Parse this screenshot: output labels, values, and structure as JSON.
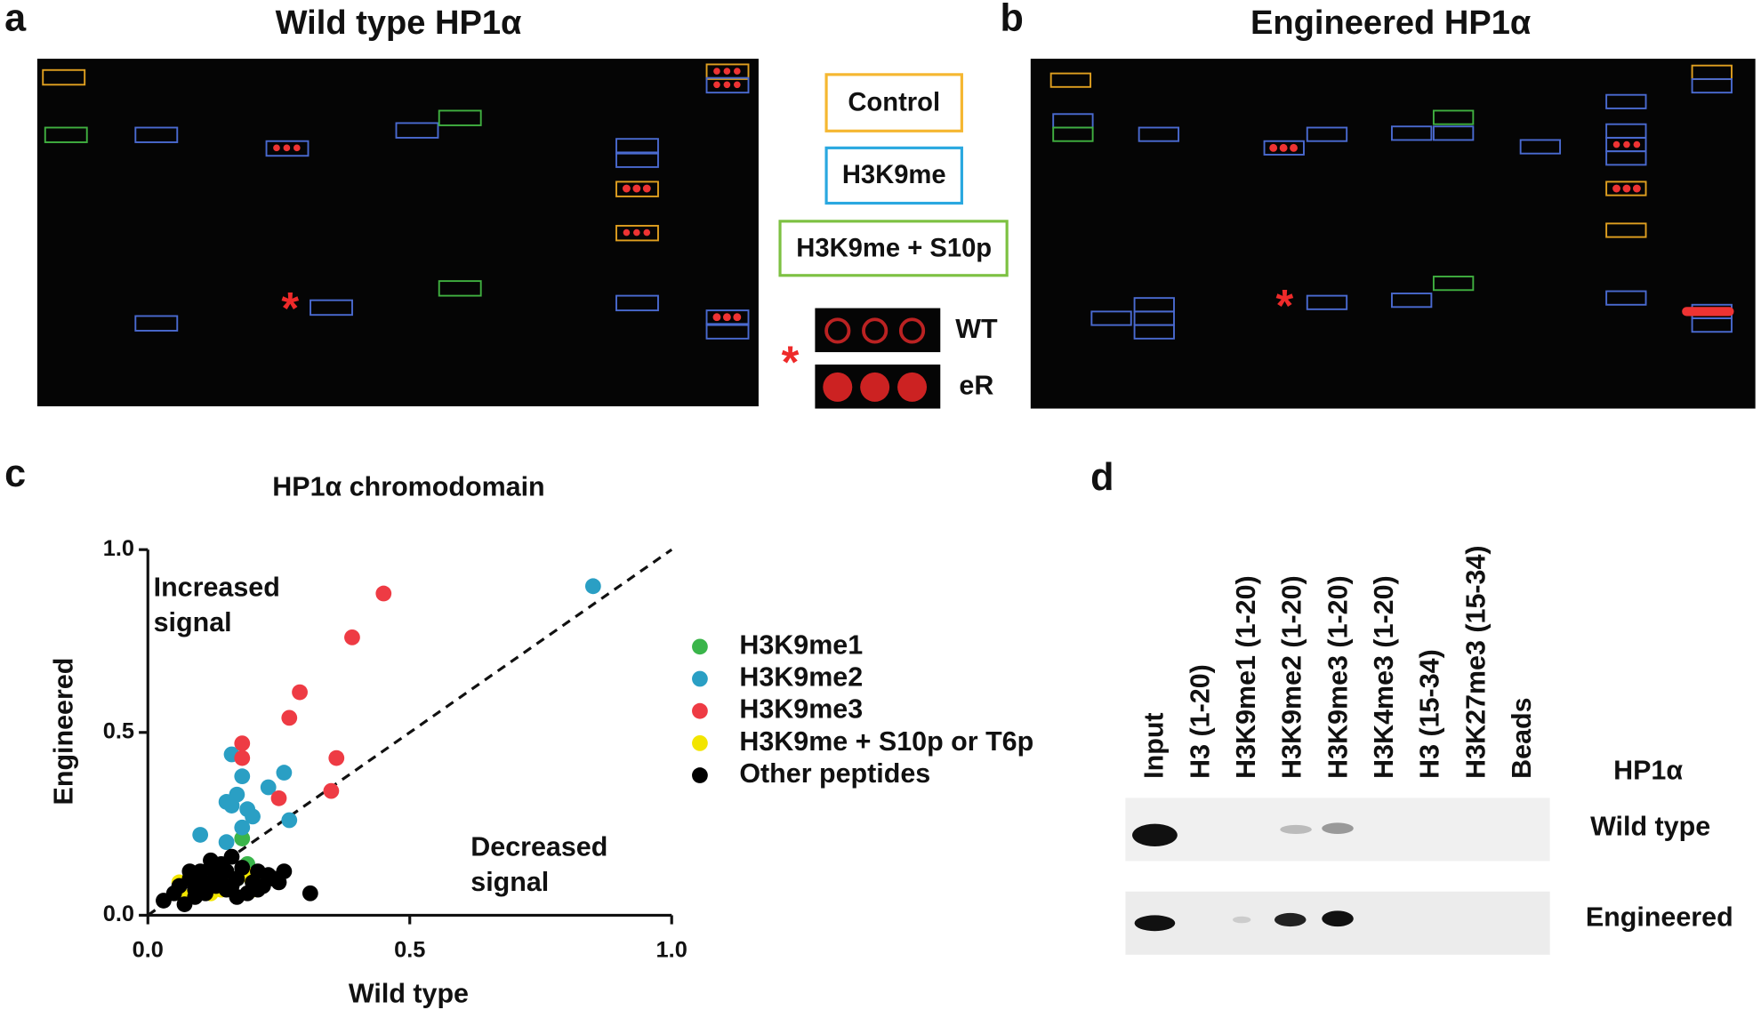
{
  "panels": [
    {
      "letter": "a",
      "title": "Wild type HP1α"
    },
    {
      "letter": "b",
      "title": "Engineered HP1α"
    }
  ],
  "legend": [
    "Control",
    "H3K9me",
    "H3K9me + S10p"
  ],
  "inset": {
    "marker": "*",
    "rows": [
      "WT",
      "eR"
    ]
  },
  "chart_letter": "c",
  "chart_data": {
    "type": "scatter",
    "title": "HP1α chromodomain",
    "x_label": "Wild type",
    "y_label": "Engineered",
    "annotations": [
      "Increased signal",
      "Decreased signal"
    ],
    "xlim": [
      0,
      1
    ],
    "ylim": [
      0,
      1
    ],
    "xticks": [
      {
        "value": 0,
        "label": "0.0"
      },
      {
        "value": 0.5,
        "label": "0.5"
      },
      {
        "value": 1,
        "label": "1.0"
      }
    ],
    "yticks": [
      {
        "value": 0,
        "label": "0.0"
      },
      {
        "value": 0.5,
        "label": "0.5"
      },
      {
        "value": 1,
        "label": "1.0"
      }
    ],
    "series": [
      {
        "name": "H3K9me1",
        "color": "#3ab54a",
        "x": [
          0.18,
          0.19,
          0.2,
          0.17
        ],
        "values": [
          0.21,
          0.14,
          0.12,
          0.1
        ]
      },
      {
        "name": "H3K9me2",
        "color": "#2a9fc4",
        "x": [
          0.85,
          0.16,
          0.1,
          0.15,
          0.17,
          0.16,
          0.19,
          0.2,
          0.23,
          0.26,
          0.27,
          0.18,
          0.15,
          0.18
        ],
        "values": [
          0.9,
          0.44,
          0.22,
          0.31,
          0.33,
          0.3,
          0.29,
          0.27,
          0.35,
          0.39,
          0.26,
          0.38,
          0.2,
          0.24
        ]
      },
      {
        "name": "H3K9me3",
        "color": "#ee3b44",
        "x": [
          0.18,
          0.18,
          0.27,
          0.29,
          0.39,
          0.45,
          0.36,
          0.35,
          0.25
        ],
        "values": [
          0.47,
          0.43,
          0.54,
          0.61,
          0.76,
          0.88,
          0.43,
          0.34,
          0.32
        ]
      },
      {
        "name": "H3K9me + S10p or T6p",
        "color": "#f2e500",
        "x": [
          0.06,
          0.07,
          0.15,
          0.19,
          0.2,
          0.14,
          0.12
        ],
        "values": [
          0.09,
          0.05,
          0.1,
          0.11,
          0.07,
          0.07,
          0.06
        ]
      },
      {
        "name": "Other peptides",
        "color": "#000000",
        "x": [
          0.03,
          0.05,
          0.06,
          0.08,
          0.09,
          0.1,
          0.11,
          0.12,
          0.13,
          0.14,
          0.15,
          0.16,
          0.17,
          0.18,
          0.2,
          0.21,
          0.22,
          0.23,
          0.24,
          0.25,
          0.07,
          0.09,
          0.11,
          0.13,
          0.15,
          0.17,
          0.19,
          0.21,
          0.12,
          0.14,
          0.16,
          0.1,
          0.08,
          0.26,
          0.31
        ],
        "values": [
          0.04,
          0.06,
          0.08,
          0.1,
          0.07,
          0.12,
          0.09,
          0.13,
          0.11,
          0.14,
          0.12,
          0.16,
          0.1,
          0.13,
          0.09,
          0.12,
          0.08,
          0.11,
          0.1,
          0.09,
          0.03,
          0.05,
          0.06,
          0.08,
          0.07,
          0.05,
          0.06,
          0.07,
          0.15,
          0.09,
          0.08,
          0.1,
          0.12,
          0.12,
          0.06
        ]
      }
    ]
  },
  "blot": {
    "letter": "d",
    "lanes": [
      "Input",
      "H3 (1-20)",
      "H3K9me1 (1-20)",
      "H3K9me2 (1-20)",
      "H3K9me3 (1-20)",
      "H3K4me3 (1-20)",
      "H3 (15-34)",
      "H3K27me3 (15-34)",
      "Beads"
    ],
    "protein": "HP1α",
    "rows": [
      "Wild type",
      "Engineered"
    ]
  }
}
